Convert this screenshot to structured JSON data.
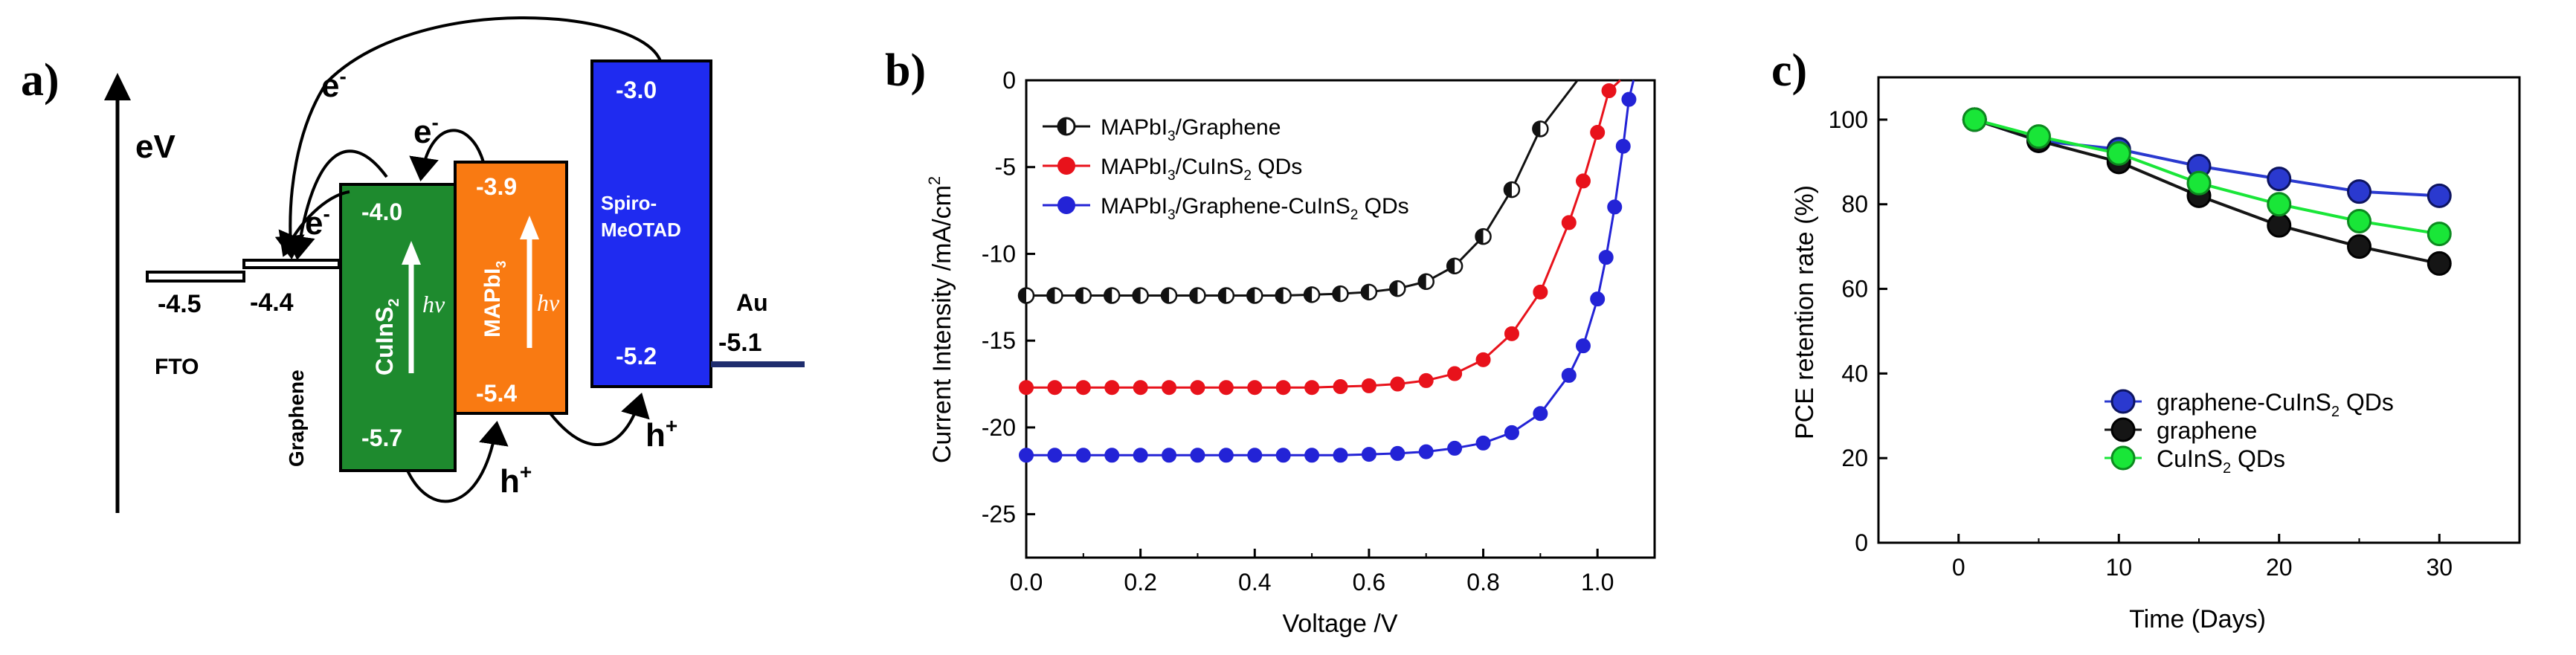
{
  "panel_a": {
    "label": "a)",
    "axis_label": "eV",
    "electron": "e",
    "electron_sup": "-",
    "hole": "h",
    "hole_sup": "+",
    "hv": "hv",
    "layers": [
      {
        "name": "FTO",
        "level": "-4.5"
      },
      {
        "name": "Graphene",
        "level": "-4.4"
      },
      {
        "name": "CuInS",
        "sub": "2",
        "cb": "-4.0",
        "vb": "-5.7",
        "color": "#1e8a2e"
      },
      {
        "name": "MAPbI",
        "sub": "3",
        "cb": "-3.9",
        "vb": "-5.4",
        "color": "#f97a12"
      },
      {
        "name_line1": "Spiro-",
        "name_line2": "MeOTAD",
        "cb": "-3.0",
        "vb": "-5.2",
        "color": "#1f2bf0"
      },
      {
        "name": "Au",
        "level": "-5.1"
      }
    ]
  },
  "chart_data": [
    {
      "panel": "b)",
      "type": "line",
      "xlabel": "Voltage /V",
      "ylabel_main": "Current Intensity /mA/cm",
      "ylabel_sup": "2",
      "xlim": [
        0.0,
        1.1
      ],
      "ylim": [
        -27.5,
        0
      ],
      "xticks": [
        "0.0",
        "0.2",
        "0.4",
        "0.6",
        "0.8",
        "1.0"
      ],
      "yticks": [
        "0",
        "-5",
        "-10",
        "-15",
        "-20",
        "-25"
      ],
      "legend_position": "top-left",
      "series": [
        {
          "name_main": "MAPbI",
          "name_sub": "3",
          "name_rest": "/Graphene",
          "color": "#111111",
          "jsc": -12.4,
          "voc": 0.965,
          "x": [
            0.0,
            0.05,
            0.1,
            0.15,
            0.2,
            0.25,
            0.3,
            0.35,
            0.4,
            0.45,
            0.5,
            0.55,
            0.6,
            0.65,
            0.7,
            0.75,
            0.8,
            0.85,
            0.9
          ],
          "y": [
            -12.4,
            -12.4,
            -12.4,
            -12.4,
            -12.4,
            -12.4,
            -12.4,
            -12.4,
            -12.4,
            -12.4,
            -12.35,
            -12.3,
            -12.2,
            -12.0,
            -11.6,
            -10.7,
            -9.0,
            -6.3,
            -2.8
          ]
        },
        {
          "name_main": "MAPbI",
          "name_sub": "3",
          "name_rest": "/CuInS",
          "name_sub2": "2",
          "name_rest2": " QDs",
          "color": "#e8121b",
          "jsc": -17.7,
          "voc": 1.04,
          "x": [
            0.0,
            0.05,
            0.1,
            0.15,
            0.2,
            0.25,
            0.3,
            0.35,
            0.4,
            0.45,
            0.5,
            0.55,
            0.6,
            0.65,
            0.7,
            0.75,
            0.8,
            0.85,
            0.9,
            0.95,
            0.975,
            1.0,
            1.02
          ],
          "y": [
            -17.7,
            -17.7,
            -17.7,
            -17.7,
            -17.7,
            -17.7,
            -17.7,
            -17.7,
            -17.7,
            -17.7,
            -17.7,
            -17.65,
            -17.6,
            -17.5,
            -17.3,
            -16.9,
            -16.1,
            -14.6,
            -12.2,
            -8.2,
            -5.8,
            -3.0,
            -0.6
          ]
        },
        {
          "name_main": "MAPbI",
          "name_sub": "3",
          "name_rest": "/Graphene-CuInS",
          "name_sub2": "2",
          "name_rest2": " QDs",
          "color": "#2323d6",
          "jsc": -21.6,
          "voc": 1.063,
          "x": [
            0.0,
            0.05,
            0.1,
            0.15,
            0.2,
            0.25,
            0.3,
            0.35,
            0.4,
            0.45,
            0.5,
            0.55,
            0.6,
            0.65,
            0.7,
            0.75,
            0.8,
            0.85,
            0.9,
            0.95,
            0.975,
            1.0,
            1.015,
            1.03,
            1.045,
            1.055
          ],
          "y": [
            -21.6,
            -21.6,
            -21.6,
            -21.6,
            -21.6,
            -21.6,
            -21.6,
            -21.6,
            -21.6,
            -21.6,
            -21.6,
            -21.6,
            -21.55,
            -21.5,
            -21.4,
            -21.2,
            -20.9,
            -20.3,
            -19.2,
            -17.0,
            -15.3,
            -12.6,
            -10.2,
            -7.3,
            -3.8,
            -1.1
          ]
        }
      ]
    },
    {
      "panel": "c)",
      "type": "line",
      "xlabel": "Time (Days)",
      "ylabel": "PCE retention rate (%)",
      "xlim": [
        -5,
        35
      ],
      "ylim": [
        0,
        110
      ],
      "xticks": [
        "0",
        "10",
        "20",
        "30"
      ],
      "yticks": [
        "0",
        "20",
        "40",
        "60",
        "80",
        "100"
      ],
      "legend_position": "bottom-right",
      "x": [
        1,
        5,
        10,
        15,
        20,
        25,
        30
      ],
      "series": [
        {
          "name_main": "graphene-CuInS",
          "name_sub": "2",
          "name_rest": " QDs",
          "color": "#2a39cf",
          "values": [
            100,
            95,
            93,
            89,
            86,
            83,
            82
          ]
        },
        {
          "name_main": "graphene",
          "name_sub": "",
          "name_rest": "",
          "color": "#151515",
          "values": [
            100,
            95,
            90,
            82,
            75,
            70,
            66
          ]
        },
        {
          "name_main": "CuInS",
          "name_sub": "2",
          "name_rest": " QDs",
          "color": "#19e638",
          "values": [
            100,
            96,
            92,
            85,
            80,
            76,
            73
          ]
        }
      ]
    }
  ]
}
